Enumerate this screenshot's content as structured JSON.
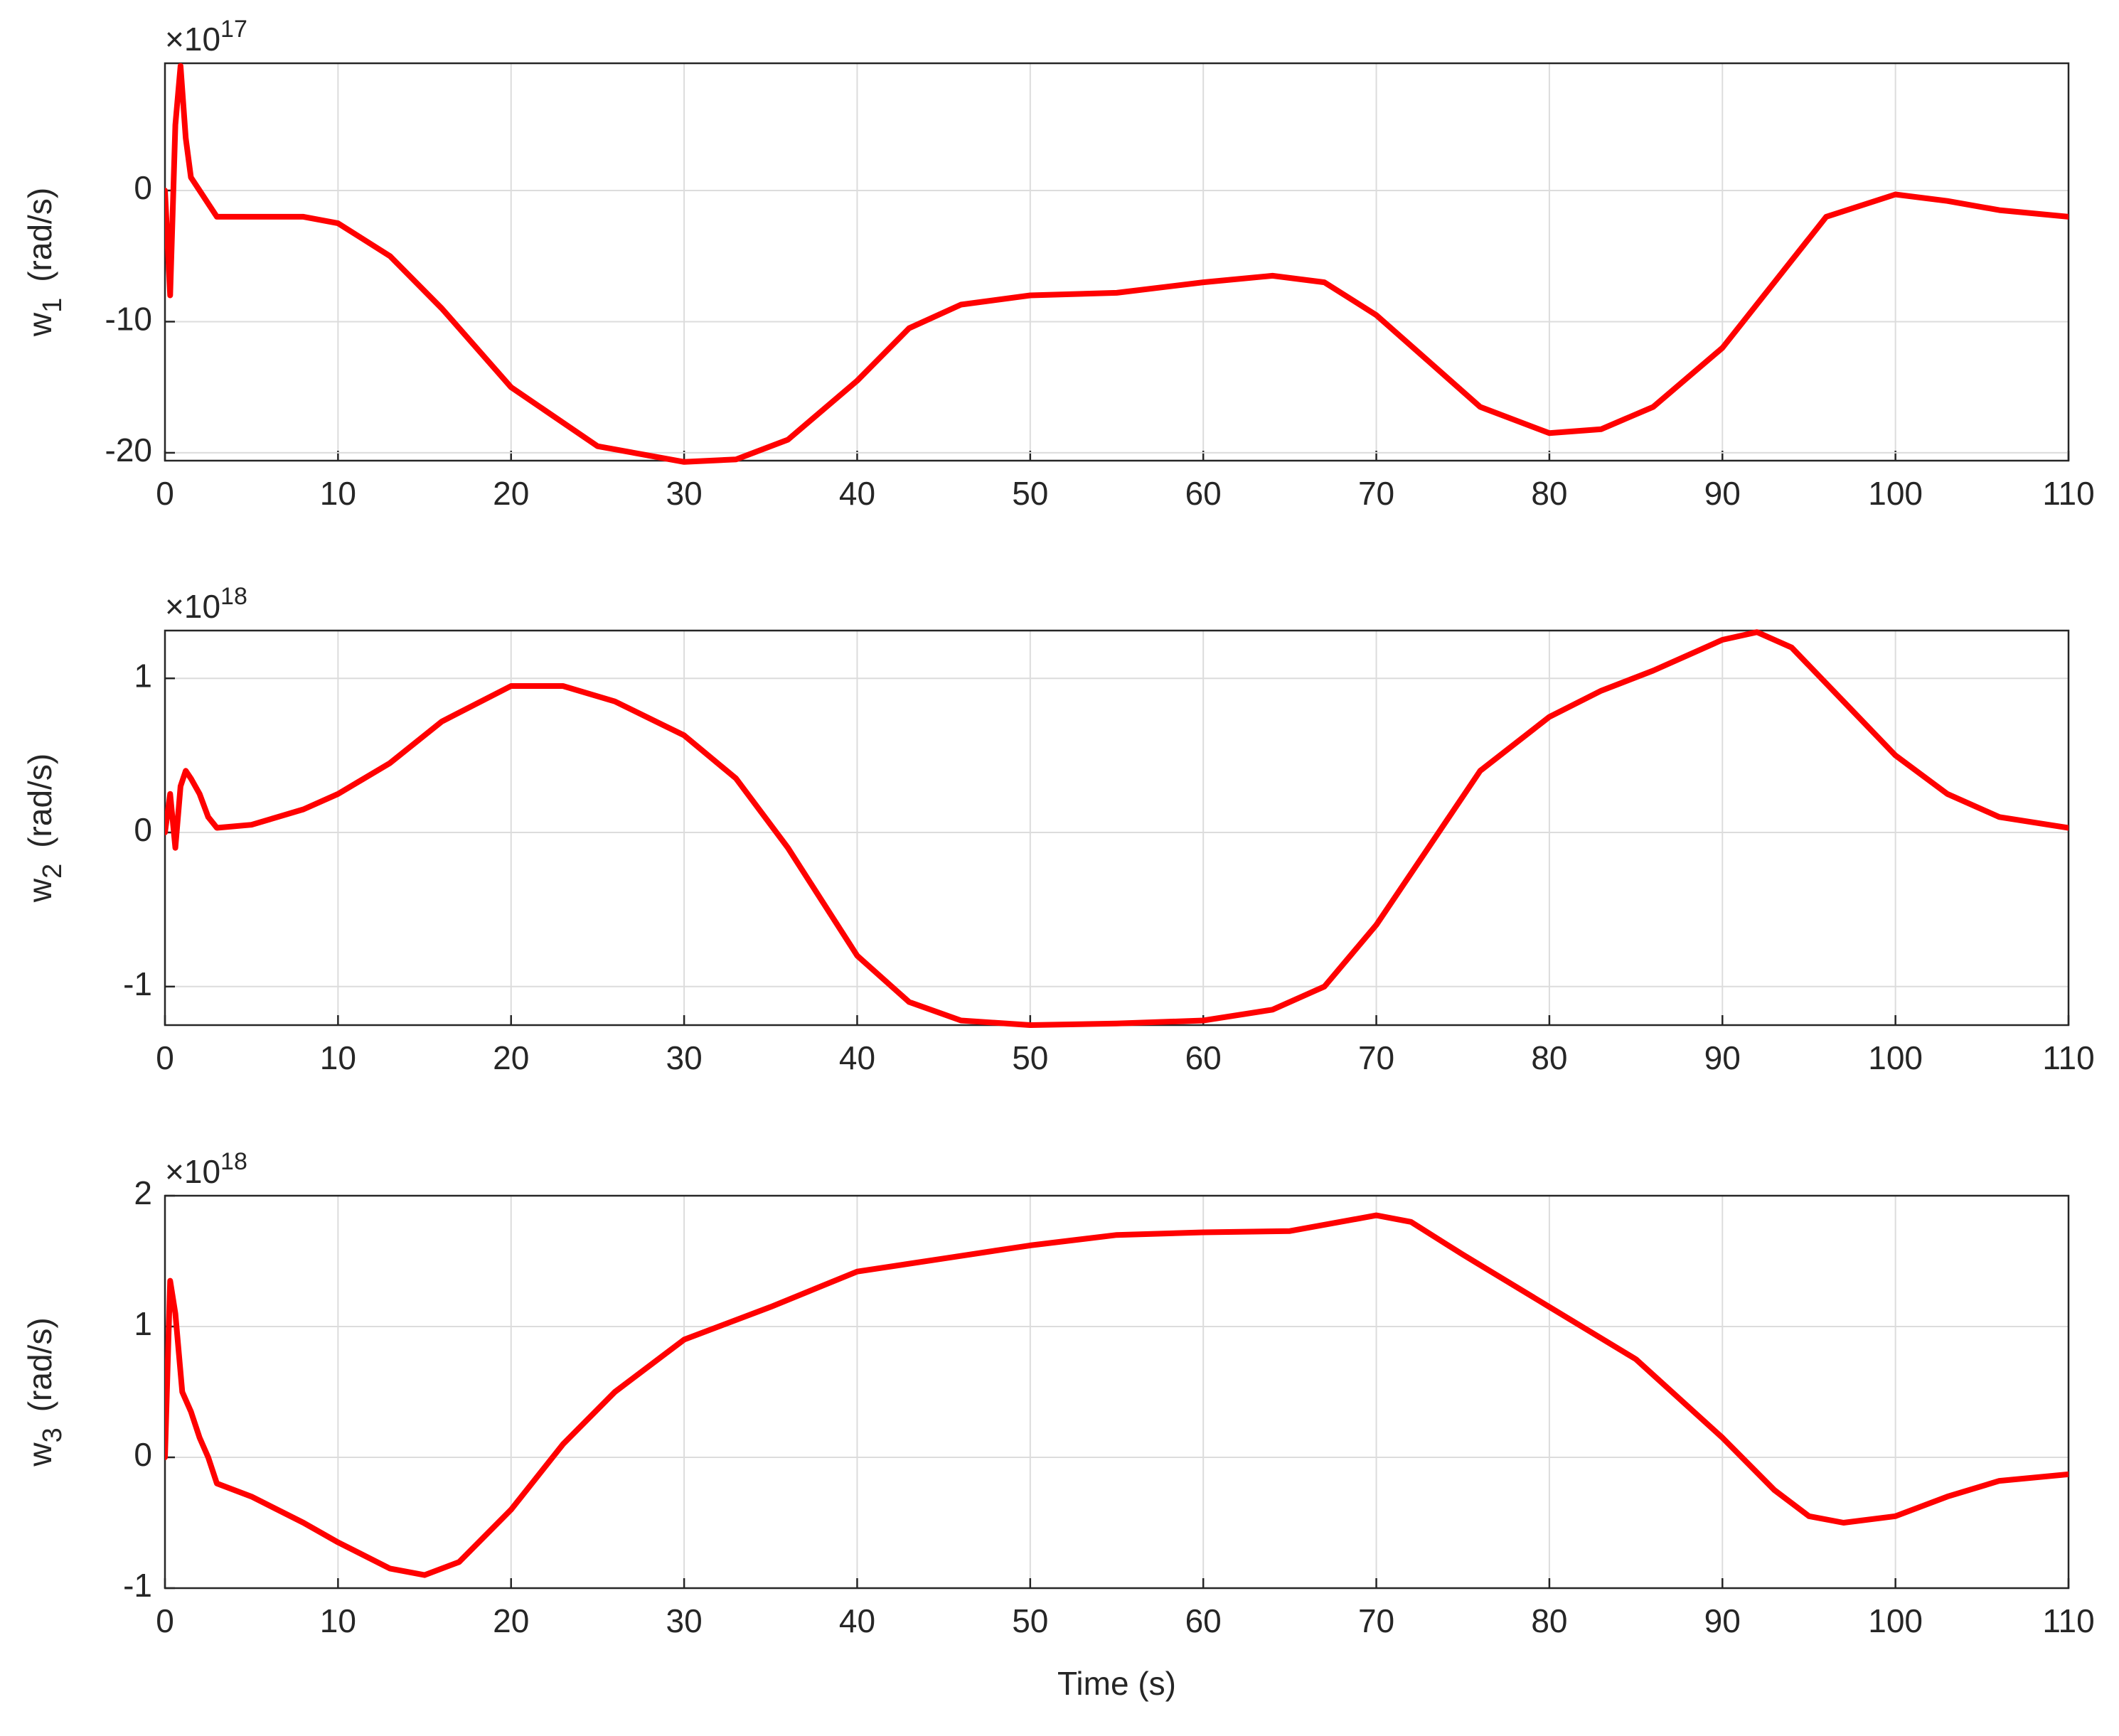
{
  "chart_data": [
    {
      "type": "line",
      "ylabel": {
        "symbol": "w",
        "subscript": "1",
        "unit": "(rad/s)"
      },
      "y_multiplier": {
        "base": "×10",
        "power": "17"
      },
      "x": [
        0,
        0.3,
        0.6,
        0.9,
        1.2,
        1.5,
        2,
        2.5,
        3,
        5,
        8,
        10,
        13,
        16,
        20,
        25,
        30,
        33,
        36,
        40,
        43,
        46,
        50,
        55,
        60,
        64,
        67,
        70,
        73,
        76,
        80,
        83,
        86,
        90,
        93,
        96,
        100,
        103,
        106,
        110
      ],
      "series": [
        {
          "color": "#000000",
          "values": [
            0,
            -8,
            5,
            9.5,
            4,
            1,
            0,
            -1,
            -2,
            -2,
            -2,
            -2.5,
            -5,
            -9,
            -15,
            -19.5,
            -20.7,
            -20.5,
            -19,
            -14.5,
            -10.5,
            -8.7,
            -8,
            -7.8,
            -7,
            -6.5,
            -7,
            -9.5,
            -13,
            -16.5,
            -18.5,
            -18.2,
            -16.5,
            -12,
            -7,
            -2,
            -0.3,
            -0.8,
            -1.5,
            -2
          ]
        },
        {
          "color": "#ff0000",
          "values": [
            0,
            -8,
            5,
            9.5,
            4,
            1,
            0,
            -1,
            -2,
            -2,
            -2,
            -2.5,
            -5,
            -9,
            -15,
            -19.5,
            -20.7,
            -20.5,
            -19,
            -14.5,
            -10.5,
            -8.7,
            -8,
            -7.8,
            -7,
            -6.5,
            -7,
            -9.5,
            -13,
            -16.5,
            -18.5,
            -18.2,
            -16.5,
            -12,
            -7,
            -2,
            -0.3,
            -0.8,
            -1.5,
            -2
          ]
        }
      ],
      "xlim": [
        0,
        110
      ],
      "xticks": [
        0,
        10,
        20,
        30,
        40,
        50,
        60,
        70,
        80,
        90,
        100,
        110
      ],
      "ylim": [
        -20.6,
        9.7
      ],
      "yticks": [
        -20,
        -10,
        0
      ],
      "grid": true
    },
    {
      "type": "line",
      "ylabel": {
        "symbol": "w",
        "subscript": "2",
        "unit": "(rad/s)"
      },
      "y_multiplier": {
        "base": "×10",
        "power": "18"
      },
      "x": [
        0,
        0.3,
        0.6,
        0.9,
        1.2,
        1.5,
        2,
        2.5,
        3,
        5,
        8,
        10,
        13,
        16,
        20,
        23,
        26,
        30,
        33,
        36,
        40,
        43,
        46,
        50,
        55,
        60,
        64,
        67,
        70,
        73,
        76,
        80,
        83,
        86,
        90,
        92,
        94,
        97,
        100,
        103,
        106,
        110
      ],
      "series": [
        {
          "color": "#000000",
          "values": [
            0,
            0.25,
            -0.1,
            0.3,
            0.4,
            0.35,
            0.25,
            0.1,
            0.03,
            0.05,
            0.15,
            0.25,
            0.45,
            0.72,
            0.95,
            0.95,
            0.85,
            0.63,
            0.35,
            -0.1,
            -0.8,
            -1.1,
            -1.22,
            -1.25,
            -1.24,
            -1.22,
            -1.15,
            -1.0,
            -0.6,
            -0.1,
            0.4,
            0.75,
            0.92,
            1.05,
            1.25,
            1.3,
            1.2,
            0.85,
            0.5,
            0.25,
            0.1,
            0.03
          ]
        },
        {
          "color": "#ff0000",
          "values": [
            0,
            0.25,
            -0.1,
            0.3,
            0.4,
            0.35,
            0.25,
            0.1,
            0.03,
            0.05,
            0.15,
            0.25,
            0.45,
            0.72,
            0.95,
            0.95,
            0.85,
            0.63,
            0.35,
            -0.1,
            -0.8,
            -1.1,
            -1.22,
            -1.25,
            -1.24,
            -1.22,
            -1.15,
            -1.0,
            -0.6,
            -0.1,
            0.4,
            0.75,
            0.92,
            1.05,
            1.25,
            1.3,
            1.2,
            0.85,
            0.5,
            0.25,
            0.1,
            0.03
          ]
        }
      ],
      "xlim": [
        0,
        110
      ],
      "xticks": [
        0,
        10,
        20,
        30,
        40,
        50,
        60,
        70,
        80,
        90,
        100,
        110
      ],
      "ylim": [
        -1.25,
        1.31
      ],
      "yticks": [
        -1,
        0,
        1
      ],
      "grid": true
    },
    {
      "type": "line",
      "ylabel": {
        "symbol": "w",
        "subscript": "3",
        "unit": "(rad/s)"
      },
      "y_multiplier": {
        "base": "×10",
        "power": "18"
      },
      "xlabel": "Time (s)",
      "x": [
        0,
        0.3,
        0.6,
        1,
        1.5,
        2,
        2.5,
        3,
        5,
        8,
        10,
        13,
        15,
        17,
        20,
        23,
        26,
        30,
        35,
        40,
        45,
        50,
        55,
        60,
        65,
        70,
        72,
        75,
        80,
        85,
        90,
        93,
        95,
        97,
        100,
        103,
        106,
        110
      ],
      "series": [
        {
          "color": "#000000",
          "values": [
            0,
            1.35,
            1.1,
            0.5,
            0.35,
            0.15,
            0,
            -0.2,
            -0.3,
            -0.5,
            -0.65,
            -0.85,
            -0.9,
            -0.8,
            -0.4,
            0.1,
            0.5,
            0.9,
            1.15,
            1.42,
            1.52,
            1.62,
            1.7,
            1.72,
            1.73,
            1.85,
            1.8,
            1.55,
            1.15,
            0.75,
            0.15,
            -0.25,
            -0.45,
            -0.5,
            -0.45,
            -0.3,
            -0.18,
            -0.13
          ]
        },
        {
          "color": "#ff0000",
          "values": [
            0,
            1.35,
            1.1,
            0.5,
            0.35,
            0.15,
            0,
            -0.2,
            -0.3,
            -0.5,
            -0.65,
            -0.85,
            -0.9,
            -0.8,
            -0.4,
            0.1,
            0.5,
            0.9,
            1.15,
            1.42,
            1.52,
            1.62,
            1.7,
            1.72,
            1.73,
            1.85,
            1.8,
            1.55,
            1.15,
            0.75,
            0.15,
            -0.25,
            -0.45,
            -0.5,
            -0.45,
            -0.3,
            -0.18,
            -0.13
          ]
        }
      ],
      "xlim": [
        0,
        110
      ],
      "xticks": [
        0,
        10,
        20,
        30,
        40,
        50,
        60,
        70,
        80,
        90,
        100,
        110
      ],
      "ylim": [
        -1,
        2
      ],
      "yticks": [
        -1,
        0,
        1,
        2
      ],
      "grid": true
    }
  ]
}
